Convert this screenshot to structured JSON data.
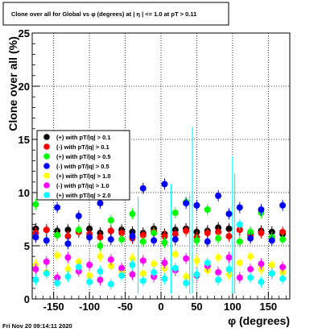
{
  "title": "Clone  over all for Global vs φ (degrees) at | η | <= 1.0 at pT > 0.11",
  "timestamp": "Fri Nov 20 09:14:11 2020",
  "chart_data": {
    "type": "scatter",
    "title": "Clone  over all for Global vs φ (degrees) at | η | <= 1.0 at pT > 0.11",
    "xlabel": "φ (degrees)",
    "ylabel": "Clone  over all (%)",
    "xlim": [
      -180,
      180
    ],
    "ylim": [
      0,
      25
    ],
    "x_ticks": [
      -150,
      -100,
      -50,
      0,
      50,
      100,
      150
    ],
    "y_ticks": [
      0,
      5,
      10,
      15,
      20,
      25
    ],
    "grid": true,
    "legend_position": "middle-left",
    "series": [
      {
        "name": "(+) with pT/|q| > 0.1",
        "color": "#000000",
        "marker": "circle",
        "x": [
          -175,
          -160,
          -145,
          -130,
          -115,
          -100,
          -85,
          -70,
          -55,
          -40,
          -25,
          -10,
          5,
          20,
          35,
          50,
          65,
          80,
          95,
          110,
          125,
          140,
          155,
          170
        ],
        "y": [
          6.6,
          6.5,
          6.4,
          6.5,
          6.3,
          6.6,
          6.2,
          6.4,
          6.5,
          6.3,
          6.2,
          6.6,
          6.1,
          6.5,
          6.6,
          6.3,
          6.4,
          6.7,
          6.6,
          6.5,
          6.2,
          6.4,
          6.3,
          6.1
        ]
      },
      {
        "name": "(-) with pT/|q| > 0.1",
        "color": "#ff0000",
        "marker": "circle",
        "x": [
          -175,
          -160,
          -145,
          -130,
          -115,
          -100,
          -85,
          -70,
          -55,
          -40,
          -25,
          -10,
          5,
          20,
          35,
          50,
          65,
          80,
          95,
          110,
          125,
          140,
          155,
          170
        ],
        "y": [
          6.2,
          6.5,
          6.0,
          5.9,
          6.3,
          6.1,
          5.8,
          6.4,
          6.2,
          5.7,
          6.0,
          6.3,
          5.9,
          6.1,
          6.4,
          5.8,
          6.2,
          6.3,
          5.9,
          6.5,
          6.0,
          6.2,
          5.8,
          6.3
        ]
      },
      {
        "name": "(+) with pT/|q| > 0.5",
        "color": "#00ff00",
        "marker": "circle",
        "x": [
          -175,
          -160,
          -145,
          -130,
          -115,
          -100,
          -85,
          -70,
          -55,
          -40,
          -25,
          -10,
          5,
          20,
          35,
          50,
          65,
          80,
          95,
          110,
          125,
          140,
          155,
          170
        ],
        "y": [
          8.9,
          5.5,
          6.0,
          5.2,
          6.5,
          5.8,
          5.0,
          7.4,
          5.6,
          8.0,
          5.4,
          6.2,
          5.3,
          8.1,
          9.1,
          5.5,
          8.4,
          5.7,
          8.0,
          5.4,
          6.3,
          8.1,
          5.8,
          5.6
        ]
      },
      {
        "name": "(-) with pT/|q| > 0.5",
        "color": "#0000ff",
        "marker": "circle",
        "x": [
          -175,
          -160,
          -145,
          -130,
          -115,
          -100,
          -85,
          -70,
          -55,
          -40,
          -25,
          -10,
          5,
          20,
          35,
          50,
          65,
          80,
          95,
          110,
          125,
          140,
          155,
          170
        ],
        "y": [
          5.8,
          5.5,
          8.6,
          5.2,
          7.8,
          5.8,
          9.0,
          5.6,
          10.2,
          5.9,
          10.4,
          5.5,
          10.8,
          5.6,
          9.0,
          8.8,
          5.4,
          9.7,
          8.0,
          8.6,
          5.7,
          8.4,
          5.5,
          8.8
        ]
      },
      {
        "name": "(+) with pT/|q| > 1.0",
        "color": "#ffff00",
        "marker": "circle",
        "x": [
          -175,
          -160,
          -145,
          -130,
          -115,
          -100,
          -85,
          -70,
          -55,
          -40,
          -25,
          -10,
          5,
          20,
          35,
          50,
          65,
          80,
          95,
          110,
          125,
          140,
          155,
          170
        ],
        "y": [
          3.2,
          2.5,
          4.1,
          2.8,
          3.5,
          2.2,
          4.0,
          3.1,
          2.6,
          3.8,
          2.4,
          3.3,
          2.9,
          4.2,
          2.1,
          3.6,
          2.7,
          3.9,
          2.3,
          3.4,
          4.0,
          2.8,
          3.2,
          2.5
        ]
      },
      {
        "name": "(-) with pT/|q| > 1.0",
        "color": "#ff00ff",
        "marker": "circle",
        "x": [
          -175,
          -160,
          -145,
          -130,
          -115,
          -100,
          -85,
          -70,
          -55,
          -40,
          -25,
          -10,
          5,
          20,
          35,
          50,
          65,
          80,
          95,
          110,
          125,
          140,
          155,
          170
        ],
        "y": [
          2.8,
          3.5,
          2.0,
          3.9,
          2.6,
          3.2,
          1.8,
          3.7,
          2.9,
          2.3,
          3.6,
          2.1,
          3.4,
          2.7,
          3.8,
          2.2,
          3.1,
          2.5,
          3.9,
          2.0,
          2.8,
          3.3,
          2.4,
          3.0
        ]
      },
      {
        "name": "(+) with pT/|q| > 2.0",
        "color": "#00ffff",
        "marker": "circle",
        "x": [
          -175,
          -160,
          -145,
          -130,
          -115,
          -100,
          -85,
          -70,
          -55,
          -40,
          -25,
          -10,
          5,
          20,
          35,
          50,
          65,
          80,
          95,
          110,
          125,
          140,
          155,
          170
        ],
        "y": [
          1.8,
          2.4,
          1.5,
          2.1,
          3.0,
          1.6,
          2.6,
          1.4,
          2.2,
          3.2,
          1.7,
          2.5,
          1.9,
          2.9,
          1.5,
          2.3,
          3.4,
          1.8,
          2.8,
          7.0,
          2.0,
          1.6,
          2.4,
          1.9
        ]
      }
    ],
    "tall_error_bars": [
      {
        "x": 44,
        "y_high": 16.2,
        "color": "#00ffff"
      },
      {
        "x": 100,
        "y_high": 13.4,
        "color": "#00ffff"
      },
      {
        "x": 103,
        "y_high": 11.8,
        "color": "#00ffff"
      },
      {
        "x": 14,
        "y_high": 10.8,
        "color": "#00ffff"
      },
      {
        "x": 40,
        "y_high": 9.8,
        "color": "#00ffff"
      },
      {
        "x": -32,
        "y_high": 9.6,
        "color": "#00ffff"
      }
    ]
  }
}
